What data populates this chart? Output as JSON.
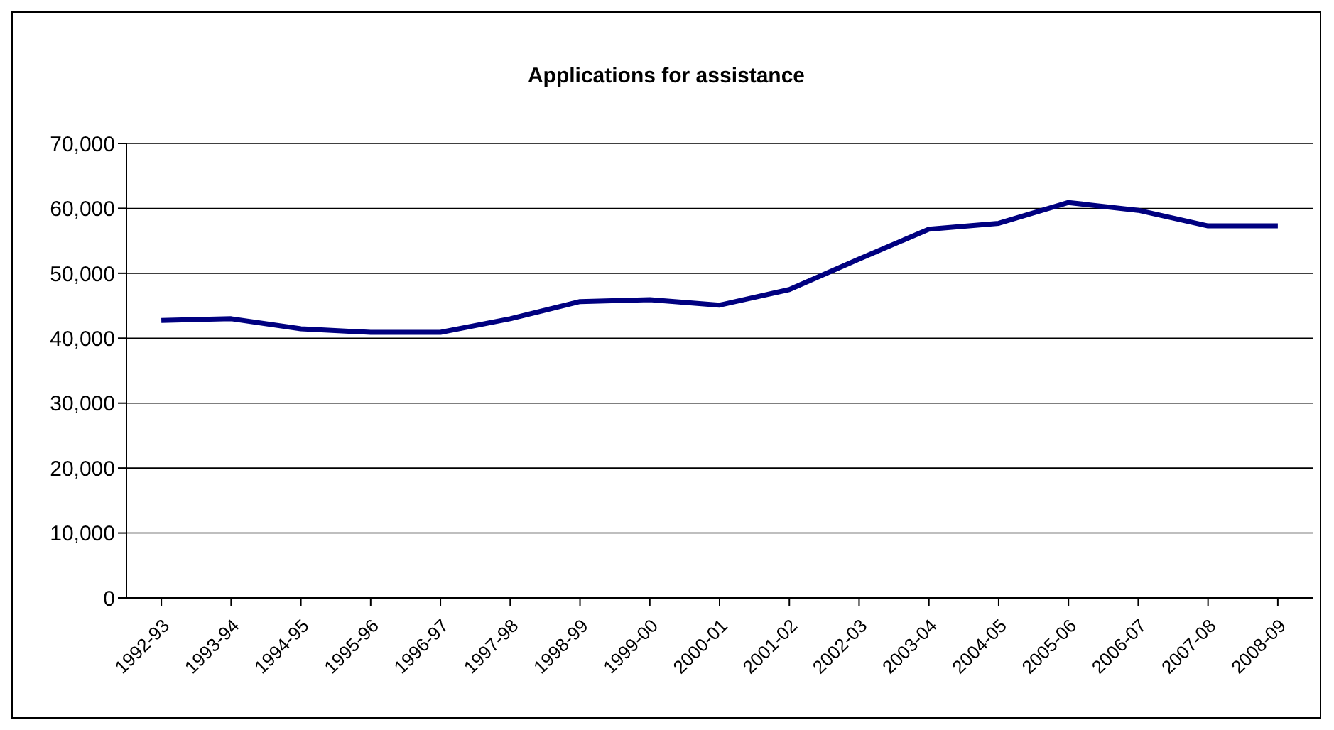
{
  "chart_data": {
    "type": "line",
    "title": "Applications for assistance",
    "categories": [
      "1992-93",
      "1993-94",
      "1994-95",
      "1995-96",
      "1996-97",
      "1997-98",
      "1998-99",
      "1999-00",
      "2000-01",
      "2001-02",
      "2002-03",
      "2003-04",
      "2004-05",
      "2005-06",
      "2006-07",
      "2007-08",
      "2008-09"
    ],
    "series": [
      {
        "color": "#000080",
        "values": [
          42750,
          43000,
          41450,
          40900,
          40900,
          43000,
          45650,
          45950,
          45100,
          47500,
          52200,
          56800,
          57700,
          60900,
          59700,
          57300,
          57300
        ]
      }
    ],
    "ylim": [
      0,
      70000
    ],
    "yticks": [
      {
        "value": 0,
        "label": "0"
      },
      {
        "value": 10000,
        "label": "10,000"
      },
      {
        "value": 20000,
        "label": "20,000"
      },
      {
        "value": 30000,
        "label": "30,000"
      },
      {
        "value": 40000,
        "label": "40,000"
      },
      {
        "value": 50000,
        "label": "50,000"
      },
      {
        "value": 60000,
        "label": "60,000"
      },
      {
        "value": 70000,
        "label": "70,000"
      }
    ],
    "grid": "y",
    "marker": "none",
    "line_style": "solid"
  }
}
